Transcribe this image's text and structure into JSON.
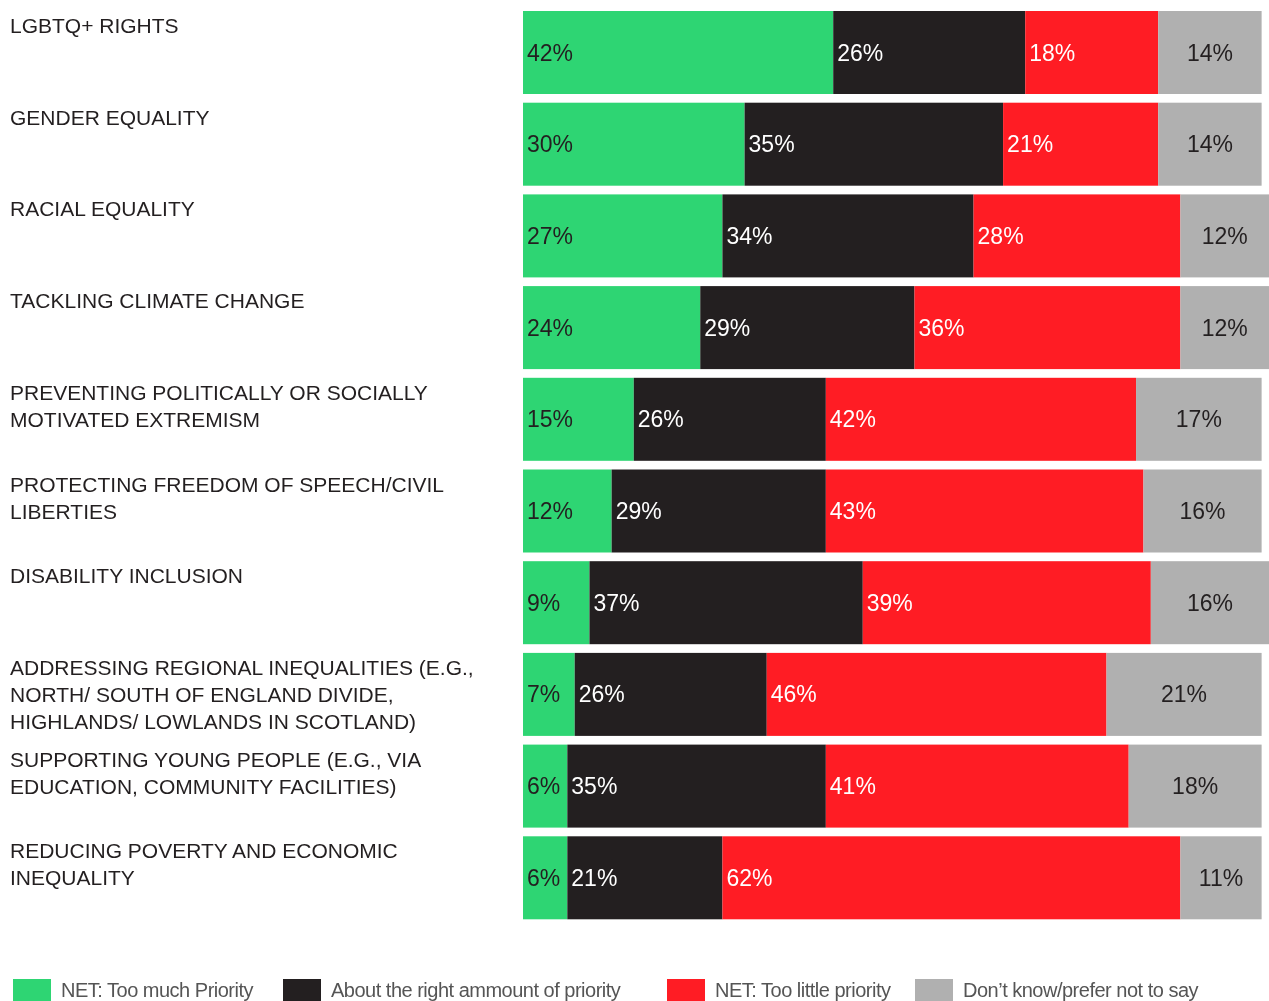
{
  "chart_data": {
    "type": "bar",
    "orientation": "horizontal",
    "stacked": true,
    "legend": "bottom",
    "categories": [
      "LGBTQ+ RIGHTS",
      "GENDER EQUALITY",
      "RACIAL EQUALITY",
      "TACKLING CLIMATE CHANGE",
      "PREVENTING POLITICALLY OR SOCIALLY MOTIVATED EXTREMISM",
      "PROTECTING FREEDOM OF SPEECH/CIVIL LIBERTIES",
      "DISABILITY INCLUSION",
      "ADDRESSING REGIONAL INEQUALITIES (E.G., NORTH/ SOUTH OF ENGLAND DIVIDE, HIGHLANDS/ LOWLANDS IN SCOTLAND)",
      "SUPPORTING YOUNG PEOPLE (E.G., VIA EDUCATION, COMMUNITY FACILITIES)",
      "REDUCING POVERTY AND ECONOMIC INEQUALITY"
    ],
    "series": [
      {
        "name": "NET: Too much Priority",
        "color": "#2ed573",
        "values": [
          42,
          30,
          27,
          24,
          15,
          12,
          9,
          7,
          6,
          6
        ],
        "value_labels": [
          "42%",
          "30%",
          "27%",
          "24%",
          "15%",
          "12%",
          "9%",
          "7%",
          "6%",
          "6%"
        ]
      },
      {
        "name": "About the right ammount of priority",
        "color": "#231f20",
        "values": [
          26,
          35,
          34,
          29,
          26,
          29,
          37,
          26,
          35,
          21
        ],
        "value_labels": [
          "26%",
          "35%",
          "34%",
          "29%",
          "26%",
          "29%",
          "37%",
          "26%",
          "35%",
          "21%"
        ]
      },
      {
        "name": "NET: Too little priority",
        "color": "#ff1c24",
        "values": [
          18,
          21,
          28,
          36,
          42,
          43,
          39,
          46,
          41,
          62
        ],
        "value_labels": [
          "18%",
          "21%",
          "28%",
          "36%",
          "42%",
          "43%",
          "39%",
          "46%",
          "41%",
          "62%"
        ]
      },
      {
        "name": "Don’t know/prefer not to say",
        "color": "#b0b0b0",
        "values": [
          14,
          14,
          12,
          12,
          17,
          16,
          16,
          21,
          18,
          11
        ],
        "value_labels": [
          "14%",
          "14%",
          "12%",
          "12%",
          "17%",
          "16%",
          "16%",
          "21%",
          "18%",
          "11%"
        ]
      }
    ]
  }
}
